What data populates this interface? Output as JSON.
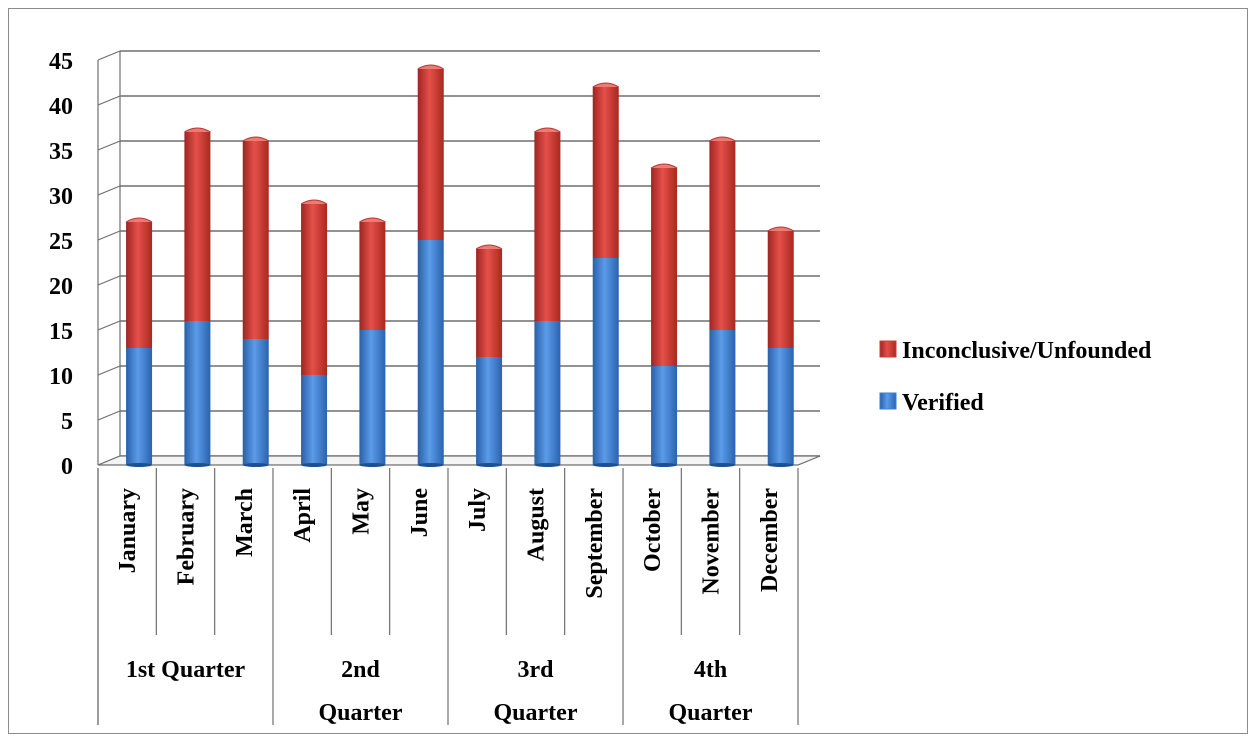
{
  "chart_data": {
    "type": "bar",
    "stacked": true,
    "three_d": true,
    "categories": [
      "January",
      "February",
      "March",
      "April",
      "May",
      "June",
      "July",
      "August",
      "September",
      "October",
      "November",
      "December"
    ],
    "groups": [
      {
        "label": "1st Quarter",
        "months": [
          "January",
          "February",
          "March"
        ]
      },
      {
        "label": "2nd Quarter",
        "months": [
          "April",
          "May",
          "June"
        ]
      },
      {
        "label": "3rd Quarter",
        "months": [
          "July",
          "August",
          "September"
        ]
      },
      {
        "label": "4th Quarter",
        "months": [
          "October",
          "November",
          "December"
        ]
      }
    ],
    "series": [
      {
        "name": "Verified",
        "color": "#3a7fd5",
        "values": [
          13,
          16,
          14,
          10,
          15,
          25,
          12,
          16,
          23,
          11,
          15,
          13
        ]
      },
      {
        "name": "Inconclusive/Unfounded",
        "color": "#d23a35",
        "values": [
          14,
          21,
          22,
          19,
          12,
          19,
          12,
          21,
          19,
          22,
          21,
          13
        ]
      }
    ],
    "yticks": [
      "0",
      "5",
      "10",
      "15",
      "20",
      "25",
      "30",
      "35",
      "40",
      "45"
    ],
    "ylim": [
      0,
      45
    ],
    "legend": {
      "position": "right",
      "entries": [
        "Inconclusive/Unfounded",
        "Verified"
      ]
    },
    "grid": true,
    "title": "",
    "xlabel": "",
    "ylabel": ""
  }
}
